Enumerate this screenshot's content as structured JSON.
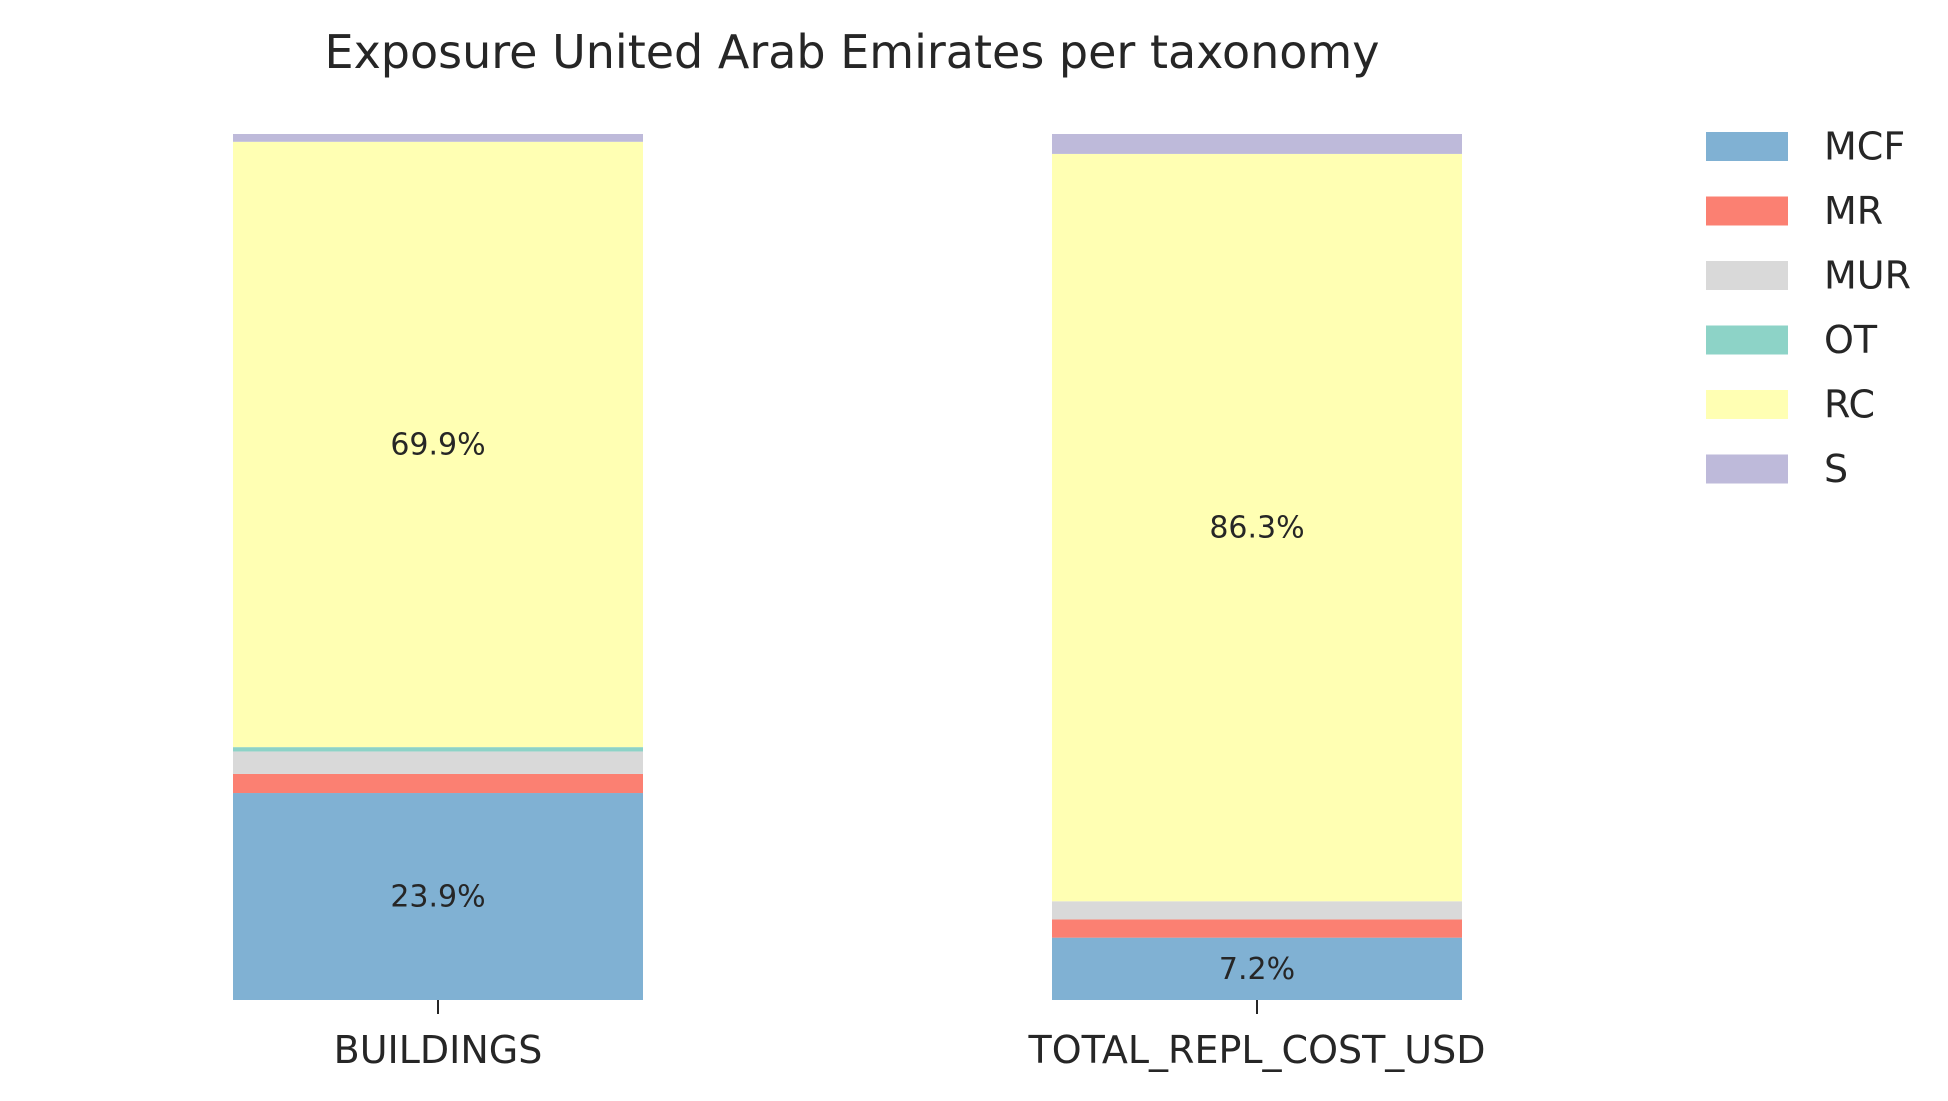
{
  "chart_data": {
    "type": "bar",
    "stacked": true,
    "normalized": true,
    "title": "Exposure United Arab Emirates per taxonomy",
    "xlabel": "",
    "ylabel": "",
    "ylim": [
      0,
      1
    ],
    "grid": false,
    "legend_position": "top-right",
    "categories": [
      "BUILDINGS",
      "TOTAL_REPL_COST_USD"
    ],
    "series": [
      {
        "name": "MCF",
        "color": "#80b1d3",
        "values": [
          0.239,
          0.072
        ]
      },
      {
        "name": "MR",
        "color": "#fb8072",
        "values": [
          0.022,
          0.021
        ]
      },
      {
        "name": "MUR",
        "color": "#d9d9d9",
        "values": [
          0.026,
          0.021
        ]
      },
      {
        "name": "OT",
        "color": "#8dd3c7",
        "values": [
          0.005,
          0.0
        ]
      },
      {
        "name": "RC",
        "color": "#ffffb3",
        "values": [
          0.699,
          0.863
        ]
      },
      {
        "name": "S",
        "color": "#bebada",
        "values": [
          0.009,
          0.023
        ]
      }
    ],
    "bar_labels": [
      {
        "category": 0,
        "series": "MCF",
        "text": "23.9%"
      },
      {
        "category": 0,
        "series": "RC",
        "text": "69.9%"
      },
      {
        "category": 1,
        "series": "MCF",
        "text": "7.2%"
      },
      {
        "category": 1,
        "series": "RC",
        "text": "86.3%"
      }
    ]
  }
}
